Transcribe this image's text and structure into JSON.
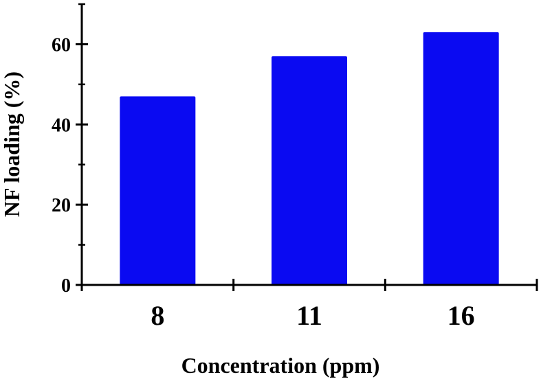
{
  "chart_data": {
    "type": "bar",
    "title": "",
    "xlabel": "Concentration (ppm)",
    "ylabel": "NF loading (%)",
    "categories": [
      "8",
      "11",
      "16"
    ],
    "values": [
      47,
      57,
      63
    ],
    "ylim": [
      0,
      70
    ],
    "yticks": [
      0,
      20,
      40,
      60
    ],
    "yticks_minor": [
      10,
      30,
      50,
      70
    ],
    "grid": false,
    "legend": "none",
    "bar_color": "#0a0af2"
  }
}
